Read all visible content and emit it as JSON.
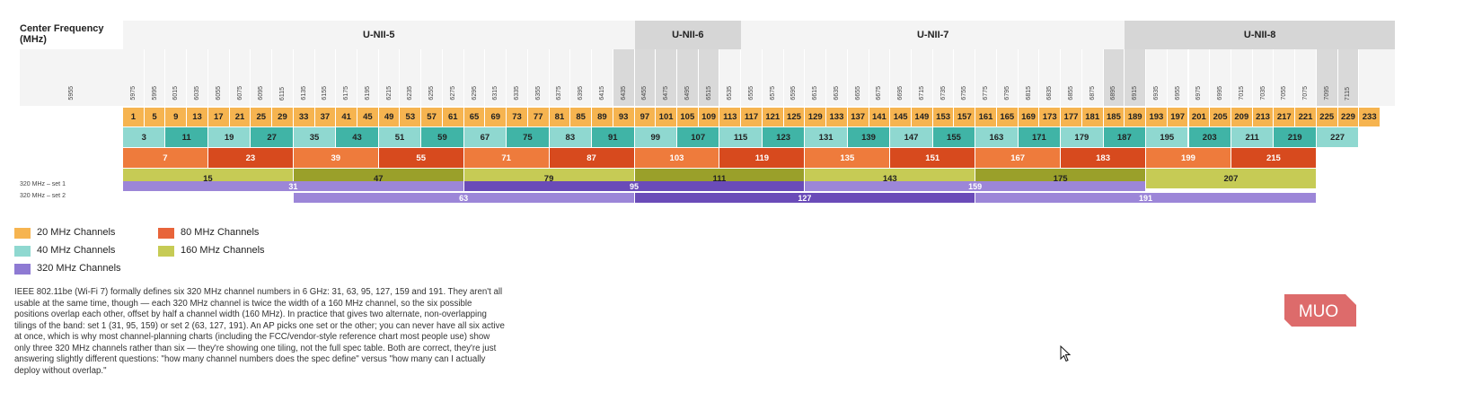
{
  "header": {
    "title": "Center Frequency (MHz)"
  },
  "bands": [
    {
      "label": "U-NII-5",
      "start": 1,
      "end": 93,
      "color": "#f4f4f4"
    },
    {
      "label": "U-NII-6",
      "start": 97,
      "end": 113,
      "color": "#d6d6d6"
    },
    {
      "label": "U-NII-7",
      "start": 117,
      "end": 185,
      "color": "#f4f4f4"
    },
    {
      "label": "U-NII-8",
      "start": 189,
      "end": 233,
      "color": "#d6d6d6"
    }
  ],
  "frequencies": {
    "first": "5955",
    "list": [
      "5975",
      "5995",
      "6015",
      "6035",
      "6055",
      "6075",
      "6095",
      "6115",
      "6135",
      "6155",
      "6175",
      "6195",
      "6215",
      "6235",
      "6255",
      "6275",
      "6295",
      "6315",
      "6335",
      "6355",
      "6375",
      "6395",
      "6415",
      "6435",
      "6455",
      "6475",
      "6495",
      "6515",
      "6535",
      "6555",
      "6575",
      "6595",
      "6615",
      "6635",
      "6655",
      "6675",
      "6695",
      "6715",
      "6735",
      "6755",
      "6775",
      "6795",
      "6815",
      "6835",
      "6855",
      "6875",
      "6895",
      "6915",
      "6935",
      "6955",
      "6975",
      "6995",
      "7015",
      "7035",
      "7055",
      "7075",
      "7095",
      "7115"
    ]
  },
  "channels_20": [
    "1",
    "5",
    "9",
    "13",
    "17",
    "21",
    "25",
    "29",
    "33",
    "37",
    "41",
    "45",
    "49",
    "53",
    "57",
    "61",
    "65",
    "69",
    "73",
    "77",
    "81",
    "85",
    "89",
    "93",
    "97",
    "101",
    "105",
    "109",
    "113",
    "117",
    "121",
    "125",
    "129",
    "133",
    "137",
    "141",
    "145",
    "149",
    "153",
    "157",
    "161",
    "165",
    "169",
    "173",
    "177",
    "181",
    "185",
    "189",
    "193",
    "197",
    "201",
    "205",
    "209",
    "213",
    "217",
    "221",
    "225",
    "229",
    "233"
  ],
  "channels_40": [
    "3",
    "11",
    "19",
    "27",
    "35",
    "43",
    "51",
    "59",
    "67",
    "75",
    "83",
    "91",
    "99",
    "107",
    "115",
    "123",
    "131",
    "139",
    "147",
    "155",
    "163",
    "171",
    "179",
    "187",
    "195",
    "203",
    "211",
    "219",
    "227"
  ],
  "channels_80": [
    "7",
    "23",
    "39",
    "55",
    "71",
    "87",
    "103",
    "119",
    "135",
    "151",
    "167",
    "183",
    "199",
    "215"
  ],
  "channels_160": [
    "15",
    "47",
    "79",
    "111",
    "143",
    "175",
    "207"
  ],
  "channels_320_set1": [
    "31",
    "95",
    "159"
  ],
  "channels_320_set2": [
    "63",
    "127",
    "191"
  ],
  "row_labels": {
    "set1": "320 MHz – set 1",
    "set2": "320 MHz – set 2"
  },
  "colors": {
    "c20": "#f6b450",
    "c40": [
      "#8fd8d0",
      "#40b4a6"
    ],
    "c80": [
      "#ee7b3c",
      "#d74a1e"
    ],
    "c160": [
      "#c6cb55",
      "#9aa02a"
    ],
    "c320": [
      "#9c86d8",
      "#6a4bb8"
    ]
  },
  "legend": [
    {
      "label": "20 MHz Channels",
      "color": "#f6b450"
    },
    {
      "label": "80 MHz Channels",
      "color": "#e8643a"
    },
    {
      "label": "40 MHz Channels",
      "color": "#8fd8d0"
    },
    {
      "label": "160 MHz Channels",
      "color": "#c6cb55"
    },
    {
      "label": "320 MHz Channels",
      "color": "#8e7ad3"
    }
  ],
  "note": "IEEE 802.11be (Wi-Fi 7) formally defines six 320 MHz channel numbers in 6 GHz: 31, 63, 95, 127, 159 and 191. They aren't all usable at the same time, though — each 320 MHz channel is twice the width of a 160 MHz channel, so the six possible positions overlap each other, offset by half a channel width (160 MHz). In practice that gives two alternate, non-overlapping tilings of the band: set 1 (31, 95, 159) or set 2 (63, 127, 191). An AP picks one set or the other; you can never have all six active at once, which is why most channel-planning charts (including the FCC/vendor-style reference chart most people use) show only three 320 MHz channels rather than six — they're showing one tiling, not the full spec table. Both are correct, they're just answering slightly different questions: \"how many channel numbers does the spec define\" versus \"how many can I actually deploy without overlap.\"",
  "logo": {
    "text": "MUO",
    "color": "#dd6b6b"
  }
}
